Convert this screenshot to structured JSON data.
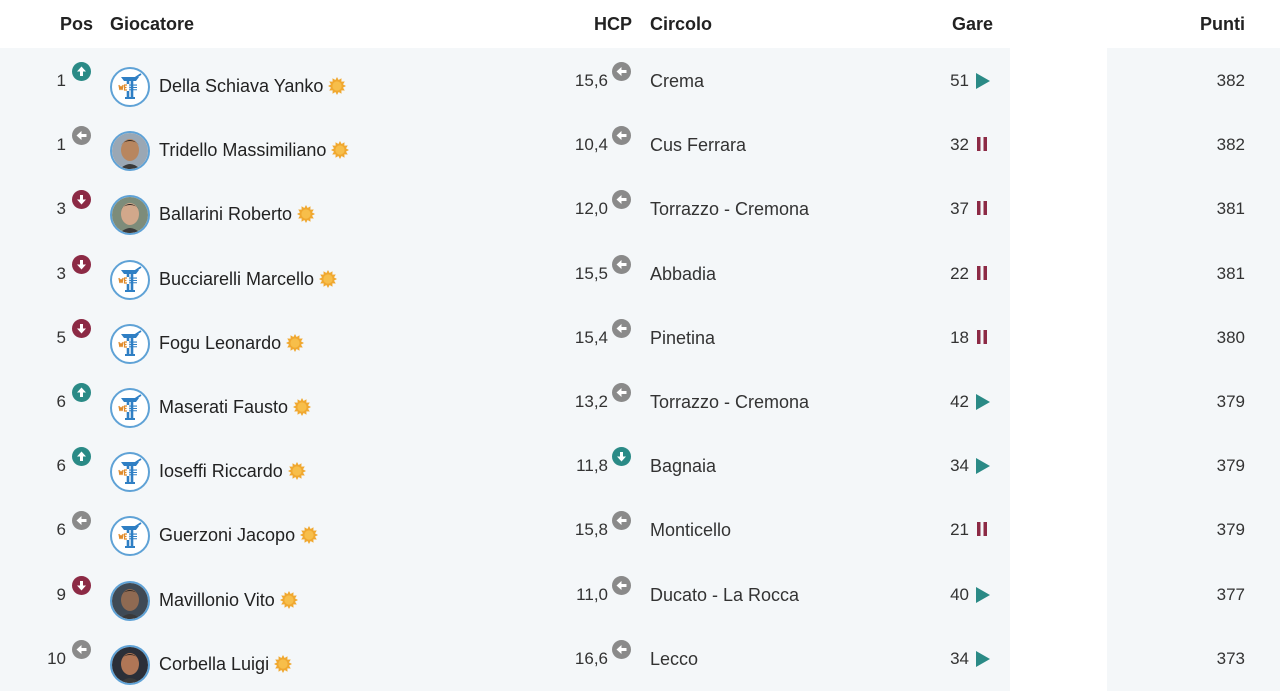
{
  "headers": {
    "pos": "Pos",
    "player": "Giocatore",
    "hcp": "HCP",
    "club": "Circolo",
    "gare": "Gare",
    "punti": "Punti"
  },
  "colors": {
    "up": "#2a8a86",
    "down": "#8c2a45",
    "same": "#8a8a8a",
    "play": "#2a8a86",
    "pause": "#8c2a45",
    "star": "#f0a830",
    "avatar_border": "#5fa2d6"
  },
  "rows": [
    {
      "pos": "1",
      "pos_trend": "up",
      "name": "Della Schiava Yanko",
      "avatar": "logo",
      "hcp": "15,6",
      "hcp_trend": "same",
      "club": "Crema",
      "gare": "51",
      "gare_status": "play",
      "punti": "382"
    },
    {
      "pos": "1",
      "pos_trend": "same",
      "name": "Tridello Massimiliano",
      "avatar": "photo",
      "hcp": "10,4",
      "hcp_trend": "same",
      "club": "Cus Ferrara",
      "gare": "32",
      "gare_status": "pause",
      "punti": "382"
    },
    {
      "pos": "3",
      "pos_trend": "down",
      "name": "Ballarini Roberto",
      "avatar": "photo",
      "hcp": "12,0",
      "hcp_trend": "same",
      "club": "Torrazzo - Cremona",
      "gare": "37",
      "gare_status": "pause",
      "punti": "381"
    },
    {
      "pos": "3",
      "pos_trend": "down",
      "name": "Bucciarelli Marcello",
      "avatar": "logo",
      "hcp": "15,5",
      "hcp_trend": "same",
      "club": "Abbadia",
      "gare": "22",
      "gare_status": "pause",
      "punti": "381"
    },
    {
      "pos": "5",
      "pos_trend": "down",
      "name": "Fogu Leonardo",
      "avatar": "logo",
      "hcp": "15,4",
      "hcp_trend": "same",
      "club": "Pinetina",
      "gare": "18",
      "gare_status": "pause",
      "punti": "380"
    },
    {
      "pos": "6",
      "pos_trend": "up",
      "name": "Maserati Fausto",
      "avatar": "logo",
      "hcp": "13,2",
      "hcp_trend": "same",
      "club": "Torrazzo - Cremona",
      "gare": "42",
      "gare_status": "play",
      "punti": "379"
    },
    {
      "pos": "6",
      "pos_trend": "up",
      "name": "Ioseffi Riccardo",
      "avatar": "logo",
      "hcp": "11,8",
      "hcp_trend": "down_teal",
      "club": "Bagnaia",
      "gare": "34",
      "gare_status": "play",
      "punti": "379"
    },
    {
      "pos": "6",
      "pos_trend": "same",
      "name": "Guerzoni Jacopo",
      "avatar": "logo",
      "hcp": "15,8",
      "hcp_trend": "same",
      "club": "Monticello",
      "gare": "21",
      "gare_status": "pause",
      "punti": "379"
    },
    {
      "pos": "9",
      "pos_trend": "down",
      "name": "Mavillonio Vito",
      "avatar": "photo",
      "hcp": "11,0",
      "hcp_trend": "same",
      "club": "Ducato - La Rocca",
      "gare": "40",
      "gare_status": "play",
      "punti": "377"
    },
    {
      "pos": "10",
      "pos_trend": "same",
      "name": "Corbella Luigi",
      "avatar": "photo",
      "hcp": "16,6",
      "hcp_trend": "same",
      "club": "Lecco",
      "gare": "34",
      "gare_status": "play",
      "punti": "373"
    }
  ]
}
